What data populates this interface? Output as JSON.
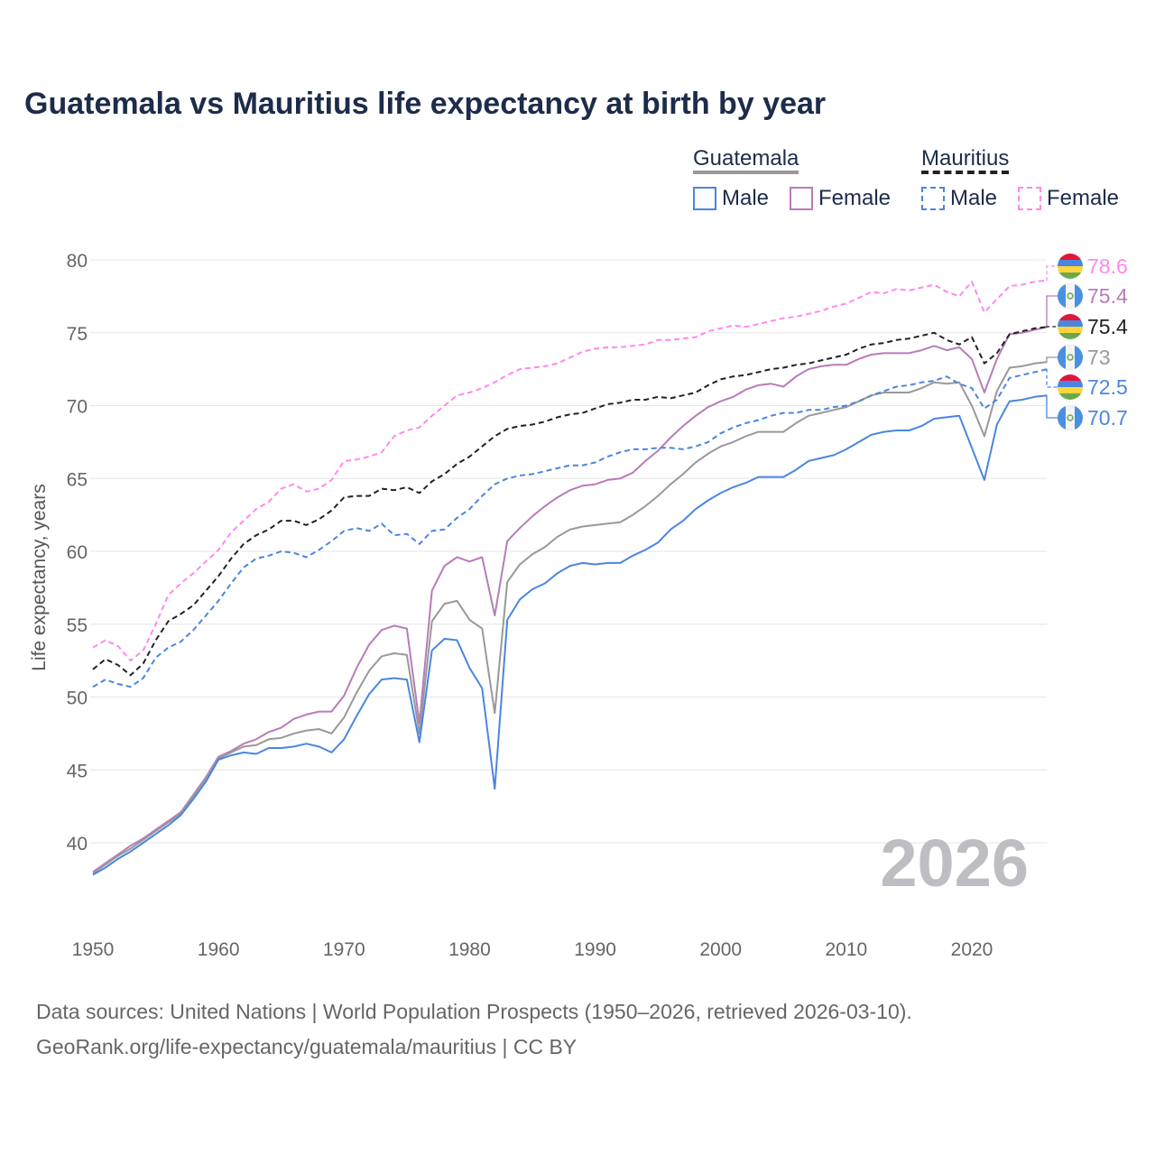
{
  "chart_data": {
    "type": "line",
    "title": "Guatemala vs Mauritius life expectancy at birth by year",
    "xlabel": "",
    "ylabel": "Life expectancy, years",
    "xlim": [
      1950,
      2026
    ],
    "ylim": [
      40,
      80
    ],
    "xticks": [
      "1950",
      "1960",
      "1970",
      "1980",
      "1990",
      "2000",
      "2010",
      "2020"
    ],
    "yticks": [
      "40",
      "45",
      "50",
      "55",
      "60",
      "65",
      "70",
      "75",
      "80"
    ],
    "watermark": "2026",
    "legend": {
      "groups": [
        {
          "label": "Guatemala",
          "items": [
            "Male",
            "Female"
          ]
        },
        {
          "label": "Mauritius",
          "items": [
            "Male",
            "Female"
          ]
        }
      ],
      "placement": "top-right"
    },
    "x_start": 1950,
    "series": [
      {
        "name": "Mauritius Female",
        "country": "Mauritius",
        "color": "#ff88ee",
        "dash": true,
        "end_label": "78.6",
        "values": [
          53.4,
          53.9,
          53.5,
          52.5,
          53.2,
          55.0,
          57.0,
          57.8,
          58.5,
          59.3,
          60.1,
          61.3,
          62.1,
          62.9,
          63.4,
          64.3,
          64.6,
          64.1,
          64.3,
          64.9,
          66.2,
          66.3,
          66.5,
          66.8,
          67.9,
          68.3,
          68.5,
          69.3,
          70.0,
          70.7,
          70.9,
          71.2,
          71.6,
          72.1,
          72.5,
          72.6,
          72.7,
          72.9,
          73.3,
          73.7,
          73.9,
          74.0,
          74.0,
          74.1,
          74.2,
          74.5,
          74.5,
          74.6,
          74.7,
          75.1,
          75.3,
          75.5,
          75.4,
          75.6,
          75.8,
          76.0,
          76.1,
          76.3,
          76.5,
          76.8,
          77.0,
          77.4,
          77.8,
          77.7,
          78.0,
          77.9,
          78.1,
          78.3,
          77.8,
          77.5,
          78.5,
          76.4,
          77.3,
          78.2,
          78.3,
          78.5,
          78.6
        ]
      },
      {
        "name": "Guatemala Female",
        "country": "Guatemala",
        "color": "#b87cb8",
        "dash": false,
        "end_label": "75.4",
        "values": [
          38.0,
          38.6,
          39.2,
          39.8,
          40.3,
          40.9,
          41.5,
          42.1,
          43.3,
          44.5,
          45.9,
          46.3,
          46.8,
          47.1,
          47.6,
          47.9,
          48.5,
          48.8,
          49.0,
          49.0,
          50.1,
          52.0,
          53.6,
          54.6,
          54.9,
          54.7,
          48.2,
          57.3,
          59.0,
          59.6,
          59.3,
          59.6,
          55.6,
          60.7,
          61.6,
          62.4,
          63.1,
          63.7,
          64.2,
          64.5,
          64.6,
          64.9,
          65.0,
          65.4,
          66.2,
          66.9,
          67.8,
          68.6,
          69.3,
          69.9,
          70.3,
          70.6,
          71.1,
          71.4,
          71.5,
          71.3,
          72.0,
          72.5,
          72.7,
          72.8,
          72.8,
          73.2,
          73.5,
          73.6,
          73.6,
          73.6,
          73.8,
          74.1,
          73.8,
          74.0,
          73.2,
          70.9,
          73.2,
          74.9,
          75.0,
          75.2,
          75.4
        ]
      },
      {
        "name": "Mauritius",
        "country": "Mauritius",
        "color": "#222222",
        "dash": true,
        "end_label": "75.4",
        "values": [
          51.9,
          52.6,
          52.2,
          51.5,
          52.3,
          53.9,
          55.2,
          55.7,
          56.3,
          57.3,
          58.3,
          59.5,
          60.5,
          61.1,
          61.5,
          62.1,
          62.1,
          61.8,
          62.2,
          62.8,
          63.7,
          63.8,
          63.8,
          64.3,
          64.2,
          64.4,
          64.0,
          64.8,
          65.3,
          66.0,
          66.5,
          67.2,
          67.9,
          68.4,
          68.6,
          68.7,
          68.9,
          69.2,
          69.4,
          69.5,
          69.8,
          70.1,
          70.2,
          70.4,
          70.4,
          70.6,
          70.5,
          70.7,
          70.9,
          71.4,
          71.8,
          72.0,
          72.1,
          72.3,
          72.5,
          72.6,
          72.8,
          72.9,
          73.1,
          73.3,
          73.5,
          73.9,
          74.2,
          74.3,
          74.5,
          74.6,
          74.8,
          75.0,
          74.5,
          74.2,
          74.7,
          72.9,
          73.6,
          74.9,
          75.1,
          75.3,
          75.4
        ]
      },
      {
        "name": "Guatemala",
        "country": "Guatemala",
        "color": "#999999",
        "dash": false,
        "end_label": "73",
        "values": [
          37.9,
          38.5,
          39.1,
          39.6,
          40.2,
          40.8,
          41.4,
          42.0,
          43.2,
          44.4,
          45.8,
          46.2,
          46.6,
          46.7,
          47.1,
          47.2,
          47.5,
          47.7,
          47.8,
          47.5,
          48.6,
          50.3,
          51.8,
          52.8,
          53.0,
          52.9,
          47.5,
          55.2,
          56.4,
          56.6,
          55.3,
          54.7,
          48.9,
          57.9,
          59.1,
          59.8,
          60.3,
          61.0,
          61.5,
          61.7,
          61.8,
          61.9,
          62.0,
          62.5,
          63.1,
          63.8,
          64.6,
          65.3,
          66.1,
          66.7,
          67.2,
          67.5,
          67.9,
          68.2,
          68.2,
          68.2,
          68.8,
          69.3,
          69.5,
          69.7,
          69.9,
          70.3,
          70.7,
          70.9,
          70.9,
          70.9,
          71.2,
          71.6,
          71.5,
          71.6,
          70.0,
          67.9,
          71.0,
          72.6,
          72.7,
          72.9,
          73.0
        ]
      },
      {
        "name": "Mauritius Male",
        "country": "Mauritius",
        "color": "#4a86e0",
        "dash": true,
        "end_label": "72.5",
        "values": [
          50.7,
          51.2,
          50.9,
          50.7,
          51.3,
          52.7,
          53.4,
          53.8,
          54.6,
          55.6,
          56.6,
          57.8,
          58.9,
          59.5,
          59.7,
          60.0,
          59.9,
          59.6,
          60.1,
          60.7,
          61.4,
          61.6,
          61.4,
          61.9,
          61.1,
          61.2,
          60.5,
          61.4,
          61.5,
          62.3,
          62.9,
          63.8,
          64.6,
          65.0,
          65.2,
          65.3,
          65.5,
          65.7,
          65.9,
          65.9,
          66.1,
          66.5,
          66.8,
          67.0,
          67.0,
          67.1,
          67.1,
          67.0,
          67.2,
          67.5,
          68.1,
          68.5,
          68.8,
          69.0,
          69.3,
          69.5,
          69.5,
          69.7,
          69.7,
          69.9,
          70.0,
          70.3,
          70.7,
          71.0,
          71.3,
          71.4,
          71.6,
          71.7,
          72.0,
          71.5,
          71.2,
          69.8,
          70.4,
          71.9,
          72.1,
          72.3,
          72.5
        ]
      },
      {
        "name": "Guatemala Male",
        "country": "Guatemala",
        "color": "#4a86e0",
        "dash": false,
        "end_label": "70.7",
        "values": [
          37.8,
          38.3,
          38.9,
          39.4,
          40.0,
          40.6,
          41.2,
          41.9,
          43.0,
          44.2,
          45.7,
          46.0,
          46.2,
          46.1,
          46.5,
          46.5,
          46.6,
          46.8,
          46.6,
          46.2,
          47.1,
          48.7,
          50.2,
          51.2,
          51.3,
          51.2,
          46.9,
          53.2,
          54.0,
          53.9,
          52.0,
          50.6,
          43.7,
          55.3,
          56.7,
          57.4,
          57.8,
          58.5,
          59.0,
          59.2,
          59.1,
          59.2,
          59.2,
          59.7,
          60.1,
          60.6,
          61.5,
          62.1,
          62.9,
          63.5,
          64.0,
          64.4,
          64.7,
          65.1,
          65.1,
          65.1,
          65.6,
          66.2,
          66.4,
          66.6,
          67.0,
          67.5,
          68.0,
          68.2,
          68.3,
          68.3,
          68.6,
          69.1,
          69.2,
          69.3,
          67.1,
          64.9,
          68.7,
          70.3,
          70.4,
          70.6,
          70.7
        ]
      }
    ]
  },
  "footer": {
    "line1": "Data sources: United Nations | World Population Prospects (1950–2026, retrieved 2026-03-10).",
    "line2": "GeoRank.org/life-expectancy/guatemala/mauritius | CC BY"
  }
}
